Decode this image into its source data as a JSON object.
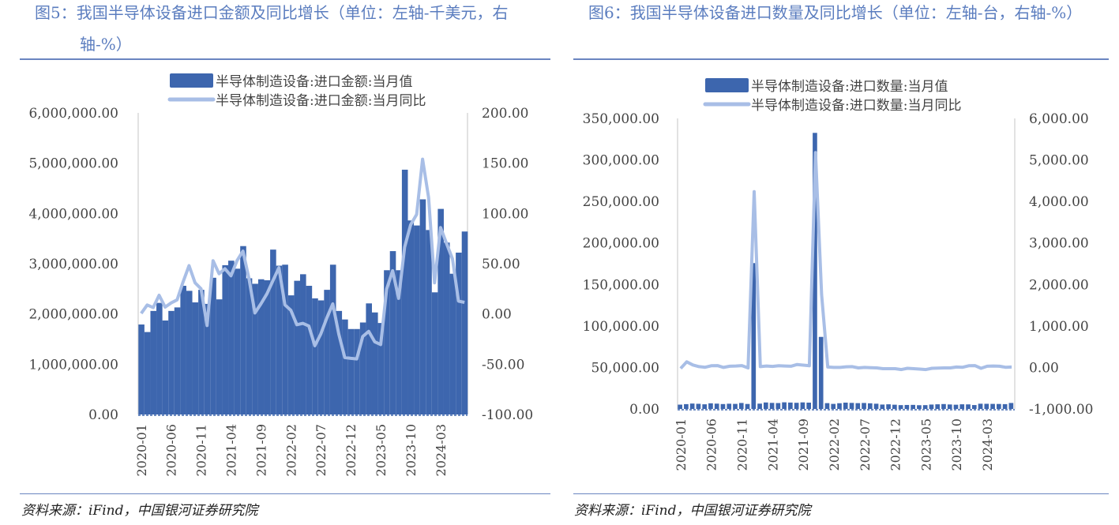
{
  "colors": {
    "bar": "#3d66ae",
    "line": "#a8bee6",
    "title": "#5b7dbf",
    "rule": "#6a85c0"
  },
  "left": {
    "title_line1": "图5：我国半导体设备进口金额及同比增长（单位：左轴-千美元，右",
    "title_line2": "轴-%）",
    "source": "资料来源：iFind，中国银河证券研究院"
  },
  "right": {
    "title_line1": "图6：我国半导体设备进口数量及同比增长（单位：左轴-台，右轴-%）",
    "source": "资料来源：iFind，中国银河证券研究院"
  },
  "chart_data": [
    {
      "type": "bar+line",
      "legend": [
        "半导体制造设备:进口金额:当月值",
        "半导体制造设备:进口金额:当月同比"
      ],
      "legend_position": "top",
      "x_tick_labels": [
        "2020-01",
        "2020-06",
        "2020-11",
        "2021-04",
        "2021-09",
        "2022-02",
        "2022-07",
        "2022-12",
        "2023-05",
        "2023-10",
        "2024-03"
      ],
      "x_start": "2020-01",
      "x_end": "2024-07",
      "y_left": {
        "min": 0,
        "max": 6000000,
        "step": 1000000,
        "ticks": [
          "0.00",
          "1,000,000.00",
          "2,000,000.00",
          "3,000,000.00",
          "4,000,000.00",
          "5,000,000.00",
          "6,000,000.00"
        ]
      },
      "y_right": {
        "min": -100,
        "max": 200,
        "step": 50,
        "ticks": [
          "-100.00",
          "-50.00",
          "0.00",
          "50.00",
          "100.00",
          "150.00",
          "200.00"
        ]
      },
      "bar_values": [
        1790000,
        1640000,
        2060000,
        2220000,
        1870000,
        2060000,
        2130000,
        2560000,
        2460000,
        2230000,
        2480000,
        2200000,
        2720000,
        2290000,
        2970000,
        3060000,
        2900000,
        3350000,
        2710000,
        2600000,
        2690000,
        2670000,
        3280000,
        2960000,
        2980000,
        2370000,
        2660000,
        2790000,
        2560000,
        2310000,
        2270000,
        2480000,
        2980000,
        2060000,
        1890000,
        1700000,
        1700000,
        1830000,
        2210000,
        2030000,
        1820000,
        2870000,
        3250000,
        2870000,
        4870000,
        3860000,
        3760000,
        4280000,
        3670000,
        2430000,
        4090000,
        3420000,
        2800000,
        3220000,
        3640000
      ],
      "line_values": [
        0.5,
        8.9,
        6.3,
        18.6,
        6.8,
        11,
        14,
        32,
        48,
        31,
        25,
        -11.5,
        53,
        40,
        45,
        38,
        53,
        62.5,
        35,
        1,
        10,
        20,
        33,
        46,
        9,
        3.7,
        -10.7,
        -9.4,
        -12,
        -31.6,
        -20,
        -4,
        10,
        -20,
        -43.4,
        -44.2,
        -44.7,
        -22.5,
        -17.3,
        -27.7,
        -30.4,
        24.6,
        43,
        15.5,
        66.5,
        88.7,
        99,
        154,
        116,
        31,
        86,
        70,
        54.7,
        12.8,
        11.5
      ]
    },
    {
      "type": "bar+line",
      "legend": [
        "半导体制造设备:进口数量:当月值",
        "半导体制造设备:进口数量:当月同比"
      ],
      "legend_position": "top",
      "x_tick_labels": [
        "2020-01",
        "2020-06",
        "2020-11",
        "2021-04",
        "2021-09",
        "2022-02",
        "2022-07",
        "2022-12",
        "2023-05",
        "2023-10",
        "2024-03"
      ],
      "x_start": "2020-01",
      "x_end": "2024-07",
      "y_left": {
        "min": 0,
        "max": 350000,
        "step": 50000,
        "ticks": [
          "0.00",
          "50,000.00",
          "100,000.00",
          "150,000.00",
          "200,000.00",
          "250,000.00",
          "300,000.00",
          "350,000.00"
        ]
      },
      "y_right": {
        "min": -1000,
        "max": 6000,
        "step": 1000,
        "ticks": [
          "-1,000.00",
          "0.00",
          "1,000.00",
          "2,000.00",
          "3,000.00",
          "4,000.00",
          "5,000.00",
          "6,000.00"
        ]
      },
      "bar_values": [
        5200,
        5800,
        6500,
        6200,
        5600,
        6800,
        6400,
        5900,
        6300,
        6100,
        7200,
        6000,
        175700,
        6400,
        7800,
        7300,
        7100,
        8000,
        7700,
        7400,
        7900,
        7600,
        332600,
        86800,
        7000,
        6100,
        6900,
        7600,
        7300,
        7000,
        7200,
        6800,
        6300,
        5300,
        5600,
        5100,
        4600,
        4800,
        4900,
        4500,
        4600,
        5300,
        5600,
        5900,
        5400,
        5100,
        5600,
        5500,
        4700,
        6300,
        6200,
        6100,
        6000,
        5800,
        7200
      ],
      "line_values": [
        -25,
        135,
        60,
        20,
        5,
        40,
        45,
        0,
        30,
        35,
        45,
        -10,
        4236,
        20,
        35,
        25,
        40,
        35,
        30,
        70,
        55,
        40,
        5176,
        1757,
        10,
        0,
        0,
        15,
        20,
        -10,
        0,
        -5,
        -10,
        -30,
        -30,
        -30,
        -50,
        -20,
        -30,
        -40,
        -50,
        -20,
        -15,
        -10,
        -10,
        10,
        5,
        40,
        45,
        -20,
        30,
        35,
        30,
        5,
        10
      ]
    }
  ]
}
